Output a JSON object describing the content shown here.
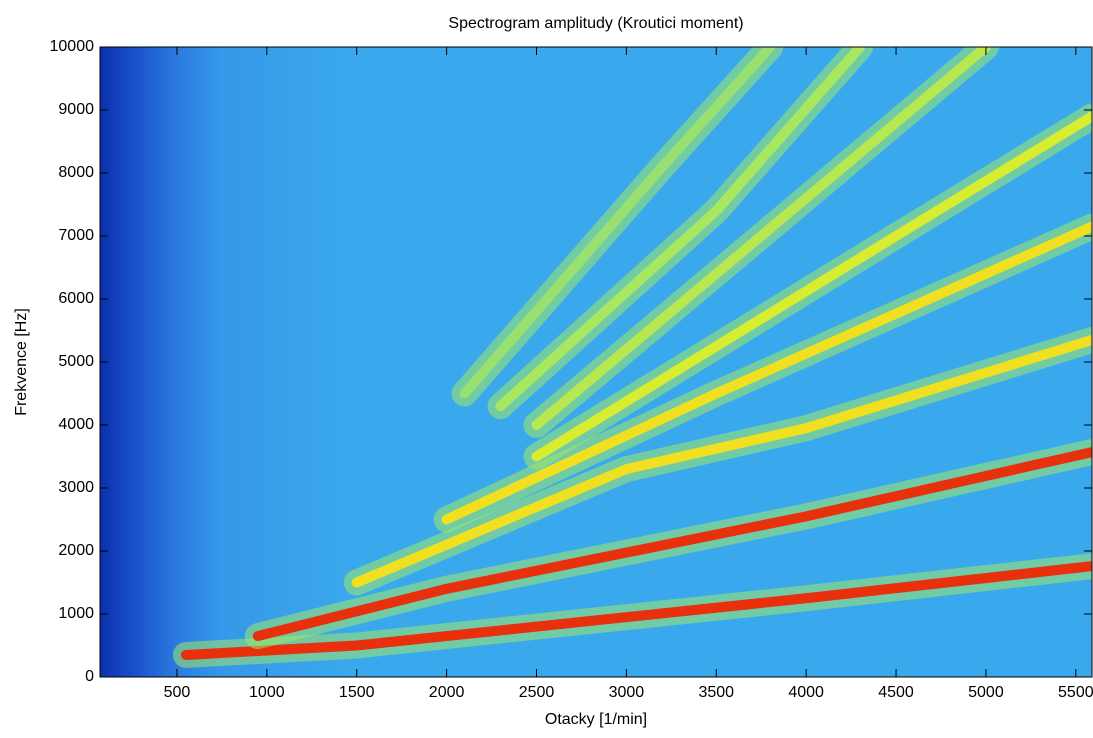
{
  "chart_data": {
    "type": "spectrogram",
    "title": "Spectrogram amplitudy (Kroutici moment)",
    "xlabel": "Otacky [1/min]",
    "ylabel": "Frekvence [Hz]",
    "xlim": [
      72,
      5590
    ],
    "ylim": [
      0,
      10000
    ],
    "xticks": [
      500,
      1000,
      1500,
      2000,
      2500,
      3000,
      3500,
      4000,
      4500,
      5000,
      5500
    ],
    "yticks": [
      0,
      1000,
      2000,
      3000,
      4000,
      5000,
      6000,
      7000,
      8000,
      9000,
      10000
    ],
    "background_color": "#3aa8ec",
    "ridges": [
      {
        "color": "#e8300c",
        "x": [
          550,
          1500,
          4000,
          5590
        ],
        "y": [
          350,
          500,
          1250,
          1760
        ]
      },
      {
        "color": "#e8300c",
        "x": [
          950,
          2000,
          4000,
          5590
        ],
        "y": [
          650,
          1400,
          2550,
          3570
        ]
      },
      {
        "color": "#f0e020",
        "x": [
          1500,
          3000,
          4000,
          5590
        ],
        "y": [
          1500,
          3300,
          3950,
          5350
        ]
      },
      {
        "color": "#f0e020",
        "x": [
          2000,
          3500,
          5590
        ],
        "y": [
          2500,
          4500,
          7150
        ]
      },
      {
        "color": "#d8ec30",
        "x": [
          2500,
          4500,
          5590
        ],
        "y": [
          3500,
          7000,
          8900
        ]
      },
      {
        "color": "#b8e850",
        "x": [
          2500,
          4000,
          5000
        ],
        "y": [
          4000,
          7600,
          10000
        ]
      },
      {
        "color": "#a8e860",
        "x": [
          2300,
          3500,
          4300
        ],
        "y": [
          4300,
          7400,
          10000
        ]
      },
      {
        "color": "#98e070",
        "x": [
          2100,
          3200,
          3800
        ],
        "y": [
          4500,
          8100,
          10000
        ]
      }
    ]
  }
}
